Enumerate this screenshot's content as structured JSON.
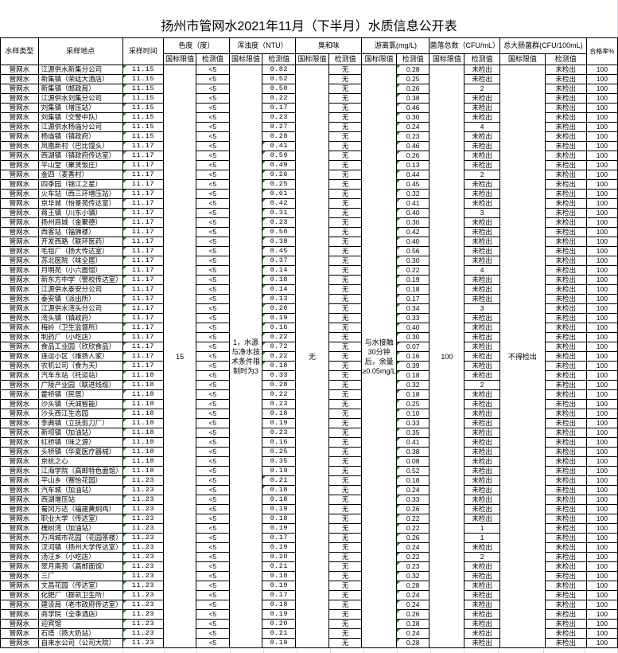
{
  "title": "扬州市管网水2021年11月（下半月）水质信息公开表",
  "headers": {
    "type": "水样类型",
    "location": "采样地点",
    "time": "采样时间",
    "color": "色度（度）",
    "turbidity": "浑浊度（NTU）",
    "odor": "臭和味",
    "chlorine": "游离氯(mg/L)",
    "bacteria": "菌落总数（CFU/mL）",
    "coliform": "总大肠菌群(CFU/100mL)",
    "pass_rate": "合格率%",
    "standard": "国标限值",
    "measured": "检测值"
  },
  "limits": {
    "color": "15",
    "turbidity": "1，水源与净水技术条件限制时为3",
    "odor": "无",
    "chlorine": "与水接触30分钟后，余量≥0.05mg/L",
    "bacteria": "100",
    "coliform": "不得检出"
  },
  "colors": {
    "error_indicator": "#1a8a1a",
    "border": "#000000"
  },
  "rows": [
    {
      "type": "管网水",
      "location": "江源供水新集分公司",
      "time": "11.15",
      "color": "<5",
      "turbidity": "0.82",
      "odor": "无",
      "chlorine": "0.28",
      "bacteria": "未检出",
      "coliform": "未检出",
      "pass": "100"
    },
    {
      "type": "管网水",
      "location": "新集镇（荣廷大酒店）",
      "time": "11.15",
      "color": "<5",
      "turbidity": "0.52",
      "odor": "无",
      "chlorine": "0.25",
      "bacteria": "未检出",
      "coliform": "未检出",
      "pass": "100"
    },
    {
      "type": "管网水",
      "location": "新集镇（邮政局）",
      "time": "11.15",
      "color": "<5",
      "turbidity": "0.50",
      "odor": "无",
      "chlorine": "0.26",
      "bacteria": "2",
      "coliform": "未检出",
      "pass": "100"
    },
    {
      "type": "管网水",
      "location": "江源供水刘集分公司",
      "time": "11.15",
      "color": "<5",
      "turbidity": "0.22",
      "odor": "无",
      "chlorine": "0.38",
      "bacteria": "未检出",
      "coliform": "未检出",
      "pass": "100"
    },
    {
      "type": "管网水",
      "location": "刘集镇（增压站）",
      "time": "11.15",
      "color": "<5",
      "turbidity": "0.17",
      "odor": "无",
      "chlorine": "0.46",
      "bacteria": "未检出",
      "coliform": "未检出",
      "pass": "100"
    },
    {
      "type": "管网水",
      "location": "刘集镇（交警中队）",
      "time": "11.15",
      "color": "<5",
      "turbidity": "0.23",
      "odor": "无",
      "chlorine": "0.30",
      "bacteria": "未检出",
      "coliform": "未检出",
      "pass": "100"
    },
    {
      "type": "管网水",
      "location": "江源供水杨庙分公司",
      "time": "11.15",
      "color": "<5",
      "turbidity": "0.27",
      "odor": "无",
      "chlorine": "0.24",
      "bacteria": "4",
      "coliform": "未检出",
      "pass": "100"
    },
    {
      "type": "管网水",
      "location": "杨庙镇（镇政府）",
      "time": "11.15",
      "color": "<5",
      "turbidity": "0.28",
      "odor": "无",
      "chlorine": "0.23",
      "bacteria": "未检出",
      "coliform": "未检出",
      "pass": "100"
    },
    {
      "type": "管网水",
      "location": "凤凰新村（巴比馒头）",
      "time": "11.17",
      "color": "<5",
      "turbidity": "0.41",
      "odor": "无",
      "chlorine": "0.46",
      "bacteria": "未检出",
      "coliform": "未检出",
      "pass": "100"
    },
    {
      "type": "管网水",
      "location": "西湖镇（镇政府传达室）",
      "time": "11.17",
      "color": "<5",
      "turbidity": "0.59",
      "odor": "无",
      "chlorine": "0.26",
      "bacteria": "未检出",
      "coliform": "未检出",
      "pass": "100"
    },
    {
      "type": "管网水",
      "location": "平山堂（聚贤饭庄）",
      "time": "11.17",
      "color": "<5",
      "turbidity": "0.49",
      "odor": "无",
      "chlorine": "0.13",
      "bacteria": "未检出",
      "coliform": "未检出",
      "pass": "100"
    },
    {
      "type": "管网水",
      "location": "金四（麦香村）",
      "time": "11.17",
      "color": "<5",
      "turbidity": "0.26",
      "odor": "无",
      "chlorine": "0.44",
      "bacteria": "2",
      "coliform": "未检出",
      "pass": "100"
    },
    {
      "type": "管网水",
      "location": "四季园（锦江之星）",
      "time": "11.17",
      "color": "<5",
      "turbidity": "0.25",
      "odor": "无",
      "chlorine": "0.45",
      "bacteria": "未检出",
      "coliform": "未检出",
      "pass": "100"
    },
    {
      "type": "管网水",
      "location": "火车站（西三环增压站）",
      "time": "11.17",
      "color": "<5",
      "turbidity": "0.61",
      "odor": "无",
      "chlorine": "0.32",
      "bacteria": "未检出",
      "coliform": "未检出",
      "pass": "100"
    },
    {
      "type": "管网水",
      "location": "京华城（怡景苑传达室）",
      "time": "11.17",
      "color": "<5",
      "turbidity": "0.42",
      "odor": "无",
      "chlorine": "0.41",
      "bacteria": "未检出",
      "coliform": "未检出",
      "pass": "100"
    },
    {
      "type": "管网水",
      "location": "蒋王镇（川东小镇）",
      "time": "11.17",
      "color": "<5",
      "turbidity": "0.31",
      "odor": "无",
      "chlorine": "0.40",
      "bacteria": "3",
      "coliform": "未检出",
      "pass": "100"
    },
    {
      "type": "管网水",
      "location": "扬州商城（金聚德）",
      "time": "11.17",
      "color": "<5",
      "turbidity": "0.23",
      "odor": "无",
      "chlorine": "0.30",
      "bacteria": "未检出",
      "coliform": "未检出",
      "pass": "100"
    },
    {
      "type": "管网水",
      "location": "西客站（福狮楼）",
      "time": "11.17",
      "color": "<5",
      "turbidity": "0.50",
      "odor": "无",
      "chlorine": "0.42",
      "bacteria": "未检出",
      "coliform": "未检出",
      "pass": "100"
    },
    {
      "type": "管网水",
      "location": "开发西路（联环医药）",
      "time": "11.17",
      "color": "<5",
      "turbidity": "0.38",
      "odor": "无",
      "chlorine": "0.40",
      "bacteria": "未检出",
      "coliform": "未检出",
      "pass": "100"
    },
    {
      "type": "管网水",
      "location": "毛毯厂（扬大传达室）",
      "time": "11.17",
      "color": "<5",
      "turbidity": "0.45",
      "odor": "无",
      "chlorine": "0.56",
      "bacteria": "未检出",
      "coliform": "未检出",
      "pass": "100"
    },
    {
      "type": "管网水",
      "location": "苏北医院（味全居）",
      "time": "11.17",
      "color": "<5",
      "turbidity": "0.37",
      "odor": "无",
      "chlorine": "0.30",
      "bacteria": "未检出",
      "coliform": "未检出",
      "pass": "100"
    },
    {
      "type": "管网水",
      "location": "月明苑（小六面馆）",
      "time": "11.17",
      "color": "<5",
      "turbidity": "0.14",
      "odor": "无",
      "chlorine": "0.22",
      "bacteria": "4",
      "coliform": "未检出",
      "pass": "100"
    },
    {
      "type": "管网水",
      "location": "新东方中学（警校传达室）",
      "time": "11.17",
      "color": "<5",
      "turbidity": "0.18",
      "odor": "无",
      "chlorine": "0.19",
      "bacteria": "未检出",
      "coliform": "未检出",
      "pass": "100"
    },
    {
      "type": "管网水",
      "location": "江源供水泰安分公司",
      "time": "11.17",
      "color": "<5",
      "turbidity": "0.14",
      "odor": "无",
      "chlorine": "0.18",
      "bacteria": "未检出",
      "coliform": "未检出",
      "pass": "100"
    },
    {
      "type": "管网水",
      "location": "泰安镇（派出所）",
      "time": "11.17",
      "color": "<5",
      "turbidity": "0.13",
      "odor": "无",
      "chlorine": "0.17",
      "bacteria": "未检出",
      "coliform": "未检出",
      "pass": "100"
    },
    {
      "type": "管网水",
      "location": "江源供水湾头分公司",
      "time": "11.17",
      "color": "<5",
      "turbidity": "0.20",
      "odor": "无",
      "chlorine": "0.34",
      "bacteria": "3",
      "coliform": "未检出",
      "pass": "100"
    },
    {
      "type": "管网水",
      "location": "湾头镇（镇政府）",
      "time": "11.17",
      "color": "<5",
      "turbidity": "0.19",
      "odor": "无",
      "chlorine": "0.33",
      "bacteria": "未检出",
      "coliform": "未检出",
      "pass": "100"
    },
    {
      "type": "管网水",
      "location": "梅岭（卫生监督所）",
      "time": "11.17",
      "color": "<5",
      "turbidity": "0.16",
      "odor": "无",
      "chlorine": "0.40",
      "bacteria": "未检出",
      "coliform": "未检出",
      "pass": "100"
    },
    {
      "type": "管网水",
      "location": "制药厂（小吃店）",
      "time": "11.17",
      "color": "<5",
      "turbidity": "0.22",
      "odor": "无",
      "chlorine": "0.30",
      "bacteria": "未检出",
      "coliform": "未检出",
      "pass": "100"
    },
    {
      "type": "管网水",
      "location": "食品工业园（欣欣食品）",
      "time": "11.17",
      "color": "<5",
      "turbidity": "0.72",
      "odor": "无",
      "chlorine": "0.07",
      "bacteria": "未检出",
      "coliform": "未检出",
      "pass": "100"
    },
    {
      "type": "管网水",
      "location": "连运小区（维扬人家）",
      "time": "11.17",
      "color": "<5",
      "turbidity": "0.22",
      "odor": "无",
      "chlorine": "0.16",
      "bacteria": "未检出",
      "coliform": "未检出",
      "pass": "100"
    },
    {
      "type": "管网水",
      "location": "农机公司（食为天）",
      "time": "11.17",
      "color": "<5",
      "turbidity": "0.18",
      "odor": "无",
      "chlorine": "0.39",
      "bacteria": "未检出",
      "coliform": "未检出",
      "pass": "100"
    },
    {
      "type": "管网水",
      "location": "汽车东站（托运站）",
      "time": "11.18",
      "color": "<5",
      "turbidity": "0.33",
      "odor": "无",
      "chlorine": "0.18",
      "bacteria": "未检出",
      "coliform": "未检出",
      "pass": "100"
    },
    {
      "type": "管网水",
      "location": "广陵产业园（联进线缆）",
      "time": "11.18",
      "color": "<5",
      "turbidity": "0.28",
      "odor": "无",
      "chlorine": "0.32",
      "bacteria": "2",
      "coliform": "未检出",
      "pass": "100"
    },
    {
      "type": "管网水",
      "location": "霍桥镇（民居）",
      "time": "11.18",
      "color": "<5",
      "turbidity": "0.22",
      "odor": "无",
      "chlorine": "0.18",
      "bacteria": "未检出",
      "coliform": "未检出",
      "pass": "100"
    },
    {
      "type": "管网水",
      "location": "沙头镇（天诚智能）",
      "time": "11.18",
      "color": "<5",
      "turbidity": "0.23",
      "odor": "无",
      "chlorine": "0.25",
      "bacteria": "未检出",
      "coliform": "未检出",
      "pass": "100"
    },
    {
      "type": "管网水",
      "location": "沙头西江生态园",
      "time": "11.18",
      "color": "<5",
      "turbidity": "0.18",
      "odor": "无",
      "chlorine": "0.10",
      "bacteria": "未检出",
      "coliform": "未检出",
      "pass": "100"
    },
    {
      "type": "管网水",
      "location": "李典镇（立抚剪刀厂）",
      "time": "11.18",
      "color": "<5",
      "turbidity": "0.19",
      "odor": "无",
      "chlorine": "0.33",
      "bacteria": "未检出",
      "coliform": "未检出",
      "pass": "100"
    },
    {
      "type": "管网水",
      "location": "新坝镇（加油站）",
      "time": "11.18",
      "color": "<5",
      "turbidity": "0.23",
      "odor": "无",
      "chlorine": "0.35",
      "bacteria": "未检出",
      "coliform": "未检出",
      "pass": "100"
    },
    {
      "type": "管网水",
      "location": "红桥镇（味之源）",
      "time": "11.18",
      "color": "<5",
      "turbidity": "0.16",
      "odor": "无",
      "chlorine": "0.41",
      "bacteria": "未检出",
      "coliform": "未检出",
      "pass": "100"
    },
    {
      "type": "管网水",
      "location": "头桥镇（华夏医疗器械）",
      "time": "11.18",
      "color": "<5",
      "turbidity": "0.25",
      "odor": "无",
      "chlorine": "0.38",
      "bacteria": "未检出",
      "coliform": "未检出",
      "pass": "100"
    },
    {
      "type": "管网水",
      "location": "京杭之心",
      "time": "11.18",
      "color": "<5",
      "turbidity": "0.35",
      "odor": "无",
      "chlorine": "0.08",
      "bacteria": "未检出",
      "coliform": "未检出",
      "pass": "100"
    },
    {
      "type": "管网水",
      "location": "江海学院（高邮特色面馆）",
      "time": "11.18",
      "color": "<5",
      "turbidity": "0.19",
      "odor": "无",
      "chlorine": "0.52",
      "bacteria": "未检出",
      "coliform": "未检出",
      "pass": "100"
    },
    {
      "type": "管网水",
      "location": "平山乡（赛怡花园）",
      "time": "11.23",
      "color": "<5",
      "turbidity": "0.21",
      "odor": "无",
      "chlorine": "0.18",
      "bacteria": "未检出",
      "coliform": "未检出",
      "pass": "100"
    },
    {
      "type": "管网水",
      "location": "汽车城（加油站）",
      "time": "11.23",
      "color": "<5",
      "turbidity": "0.18",
      "odor": "无",
      "chlorine": "0.24",
      "bacteria": "未检出",
      "coliform": "未检出",
      "pass": "100"
    },
    {
      "type": "管网水",
      "location": "西湖增压站",
      "time": "11.23",
      "color": "<5",
      "turbidity": "0.18",
      "odor": "无",
      "chlorine": "0.33",
      "bacteria": "未检出",
      "coliform": "未检出",
      "pass": "100"
    },
    {
      "type": "管网水",
      "location": "蜀冈万达（福建黄焖鸡）",
      "time": "11.23",
      "color": "<5",
      "turbidity": "0.19",
      "odor": "无",
      "chlorine": "0.26",
      "bacteria": "未检出",
      "coliform": "未检出",
      "pass": "100"
    },
    {
      "type": "管网水",
      "location": "职业大学（传达室）",
      "time": "11.23",
      "color": "<5",
      "turbidity": "0.18",
      "odor": "无",
      "chlorine": "0.22",
      "bacteria": "未检出",
      "coliform": "未检出",
      "pass": "100"
    },
    {
      "type": "管网水",
      "location": "槐树湾（加油站）",
      "time": "11.23",
      "color": "<5",
      "turbidity": "0.19",
      "odor": "无",
      "chlorine": "0.22",
      "bacteria": "1",
      "coliform": "未检出",
      "pass": "100"
    },
    {
      "type": "管网水",
      "location": "万鸿城市花园（花园茶楼）",
      "time": "11.23",
      "color": "<5",
      "turbidity": "0.17",
      "odor": "无",
      "chlorine": "0.26",
      "bacteria": "1",
      "coliform": "未检出",
      "pass": "100"
    },
    {
      "type": "管网水",
      "location": "汊河镇（扬州大学传达室）",
      "time": "11.23",
      "color": "<5",
      "turbidity": "0.19",
      "odor": "无",
      "chlorine": "0.24",
      "bacteria": "未检出",
      "coliform": "未检出",
      "pass": "100"
    },
    {
      "type": "管网水",
      "location": "汤汪乡（小吃店）",
      "time": "11.23",
      "color": "<5",
      "turbidity": "0.20",
      "odor": "无",
      "chlorine": "0.22",
      "bacteria": "2",
      "coliform": "未检出",
      "pass": "100"
    },
    {
      "type": "管网水",
      "location": "翠月南苑（高邮面馆）",
      "time": "11.23",
      "color": "<5",
      "turbidity": "0.21",
      "odor": "无",
      "chlorine": "0.23",
      "bacteria": "未检出",
      "coliform": "未检出",
      "pass": "100"
    },
    {
      "type": "管网水",
      "location": "三厂",
      "time": "11.23",
      "color": "<5",
      "turbidity": "0.18",
      "odor": "无",
      "chlorine": "0.32",
      "bacteria": "未检出",
      "coliform": "未检出",
      "pass": "100"
    },
    {
      "type": "管网水",
      "location": "文昌花园（传达室）",
      "time": "11.23",
      "color": "<5",
      "turbidity": "0.19",
      "odor": "无",
      "chlorine": "0.28",
      "bacteria": "未检出",
      "coliform": "未检出",
      "pass": "100"
    },
    {
      "type": "管网水",
      "location": "化肥厂（群凯卫生所）",
      "time": "11.23",
      "color": "<5",
      "turbidity": "0.17",
      "odor": "无",
      "chlorine": "0.24",
      "bacteria": "未检出",
      "coliform": "未检出",
      "pass": "100"
    },
    {
      "type": "管网水",
      "location": "建设局（老市政府传达室）",
      "time": "11.23",
      "color": "<5",
      "turbidity": "0.18",
      "odor": "无",
      "chlorine": "0.24",
      "bacteria": "未检出",
      "coliform": "未检出",
      "pass": "100"
    },
    {
      "type": "管网水",
      "location": "商学院（全季酒店）",
      "time": "11.23",
      "color": "<5",
      "turbidity": "0.19",
      "odor": "无",
      "chlorine": "0.26",
      "bacteria": "未检出",
      "coliform": "未检出",
      "pass": "100"
    },
    {
      "type": "管网水",
      "location": "迎宾馆",
      "time": "11.23",
      "color": "<5",
      "turbidity": "0.20",
      "odor": "无",
      "chlorine": "0.28",
      "bacteria": "未检出",
      "coliform": "未检出",
      "pass": "100"
    },
    {
      "type": "管网水",
      "location": "石塔（扬大奶站）",
      "time": "11.23",
      "color": "<5",
      "turbidity": "0.21",
      "odor": "无",
      "chlorine": "0.24",
      "bacteria": "未检出",
      "coliform": "未检出",
      "pass": "100"
    },
    {
      "type": "管网水",
      "location": "自来水公司（公司大院）",
      "time": "11.23",
      "color": "<5",
      "turbidity": "0.19",
      "odor": "无",
      "chlorine": "0.28",
      "bacteria": "未检出",
      "coliform": "未检出",
      "pass": "100"
    }
  ]
}
